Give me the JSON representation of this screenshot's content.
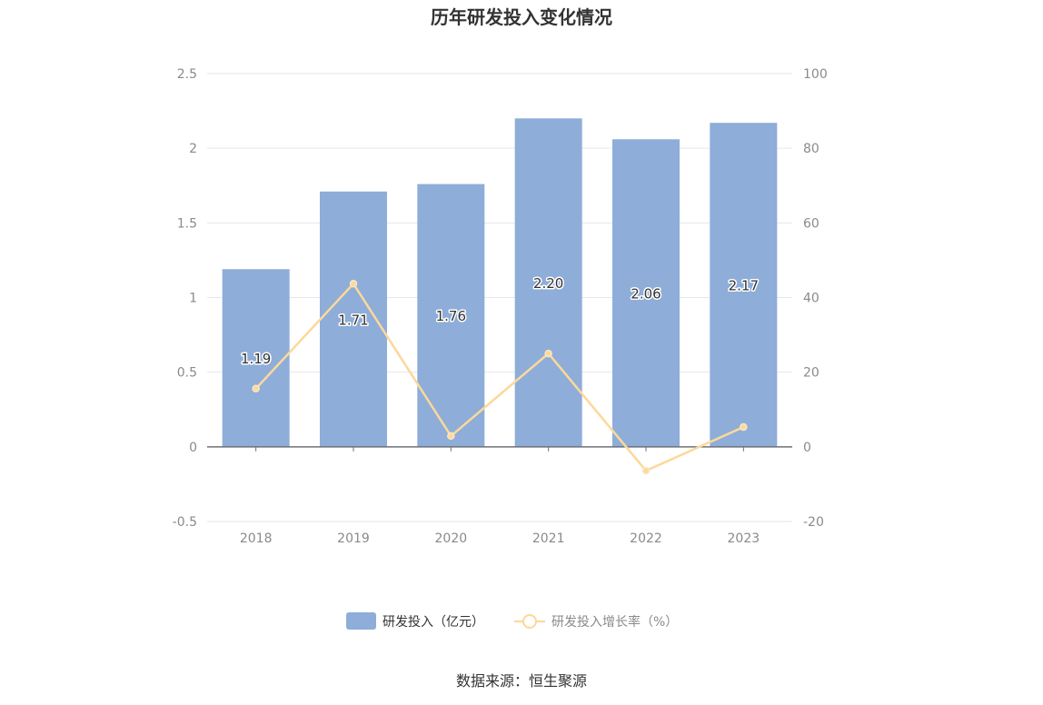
{
  "chart_data": {
    "type": "bar",
    "title": "历年研发投入变化情况",
    "categories": [
      "2018",
      "2019",
      "2020",
      "2021",
      "2022",
      "2023"
    ],
    "series": [
      {
        "name": "研发投入（亿元）",
        "type": "bar",
        "axis": "left",
        "color": "#8eadd9",
        "values": [
          1.19,
          1.71,
          1.76,
          2.2,
          2.06,
          2.17
        ],
        "labels": [
          "1.19",
          "1.71",
          "1.76",
          "2.20",
          "2.06",
          "2.17"
        ]
      },
      {
        "name": "研发投入增长率（%）",
        "type": "line",
        "axis": "right",
        "color": "#fcd89a",
        "values": [
          15.6,
          43.7,
          2.9,
          25.0,
          -6.4,
          5.3
        ]
      }
    ],
    "y_left": {
      "ticks": [
        "2.5",
        "2",
        "1.5",
        "1",
        "0.5",
        "0",
        "-0.5"
      ],
      "min": -0.5,
      "max": 2.5
    },
    "y_right": {
      "ticks": [
        "100",
        "80",
        "60",
        "40",
        "20",
        "0",
        "-20"
      ],
      "min": -20,
      "max": 100
    },
    "legend_position": "bottom-center",
    "grid": true
  },
  "source_text": "数据来源：恒生聚源"
}
